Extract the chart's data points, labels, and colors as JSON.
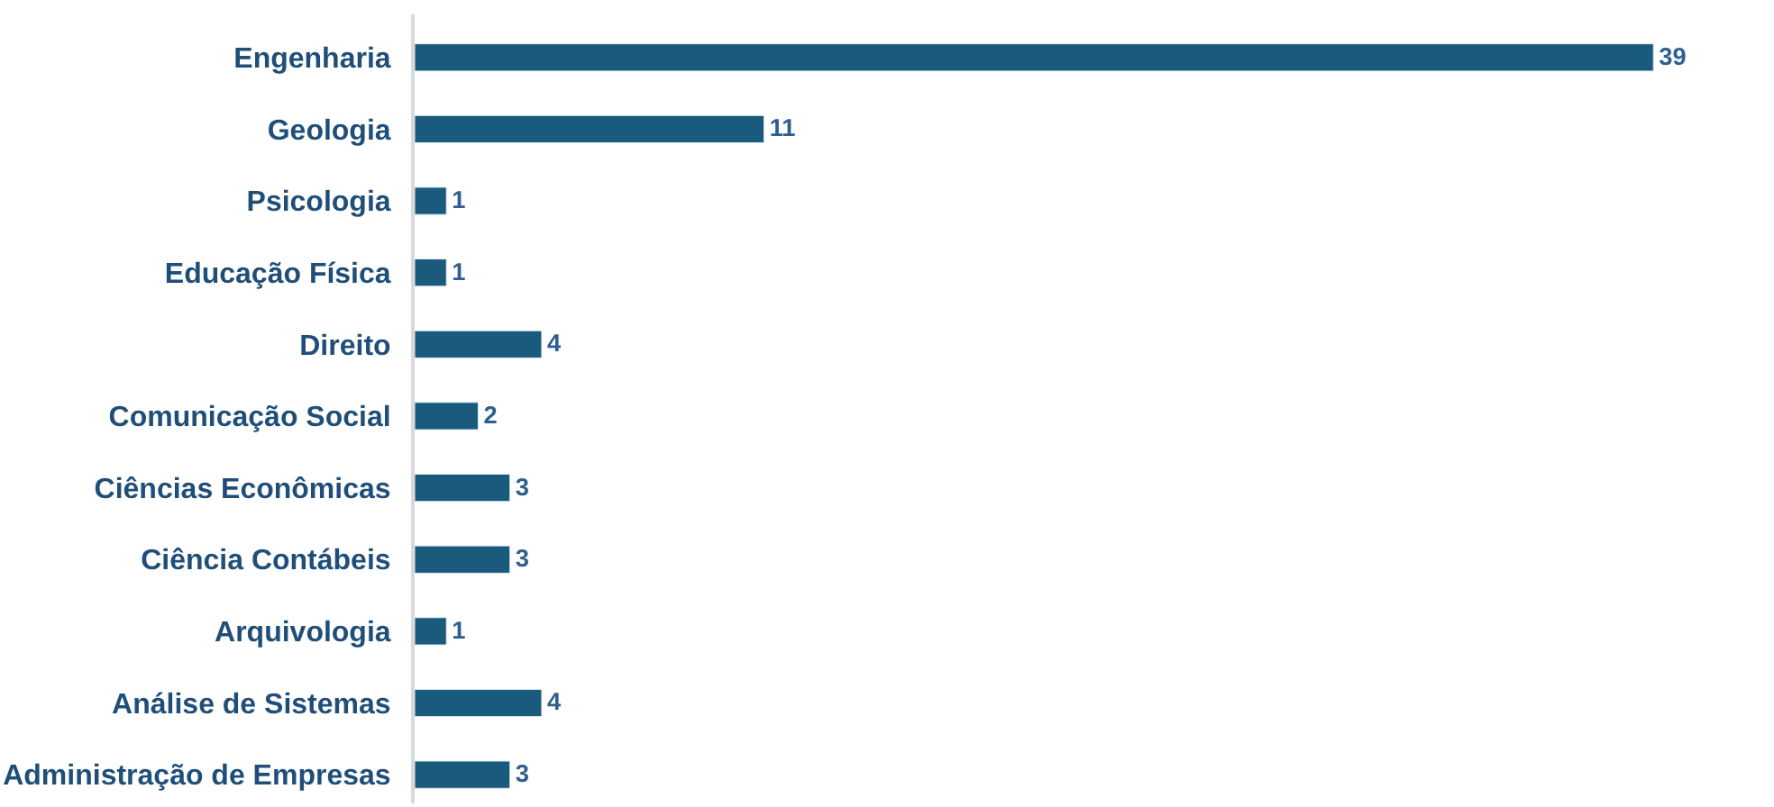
{
  "chart_data": {
    "type": "bar",
    "orientation": "horizontal",
    "categories": [
      "Engenharia",
      "Geologia",
      "Psicologia",
      "Educação Física",
      "Direito",
      "Comunicação Social",
      "Ciências Econômicas",
      "Ciência Contábeis",
      "Arquivologia",
      "Análise de Sistemas",
      "Administração de Empresas"
    ],
    "values": [
      39,
      11,
      1,
      1,
      4,
      2,
      3,
      3,
      1,
      4,
      3
    ],
    "color": "#1a5b7d",
    "data_labels": true,
    "tick_labels": "y"
  }
}
